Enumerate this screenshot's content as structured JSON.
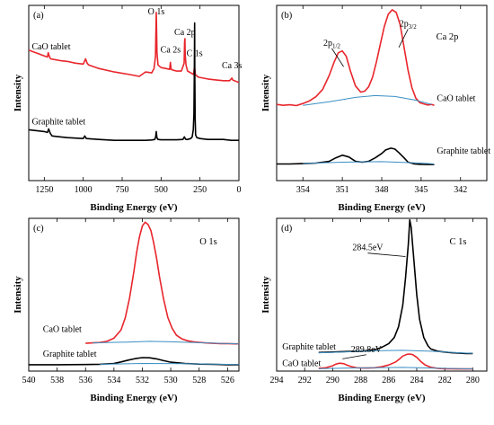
{
  "colors": {
    "cao": "#e8262c",
    "graphite": "#000000",
    "background": "#3a8fc4"
  },
  "chart_data": [
    {
      "type": "line",
      "label": "(a)",
      "xlabel": "Binding Energy (eV)",
      "ylabel": "Intensity",
      "xlim": [
        1350,
        0
      ],
      "ylim": [
        0,
        10
      ],
      "xticks": [
        1250,
        1000,
        750,
        500,
        250,
        0
      ],
      "peak_labels": [
        {
          "text": "O 1s",
          "x": 531,
          "y": 9.5
        },
        {
          "text": "Ca 2p",
          "x": 347,
          "y": 8.3
        },
        {
          "text": "Ca 2s",
          "x": 439,
          "y": 7.3
        },
        {
          "text": "C 1s",
          "x": 285,
          "y": 7.1
        },
        {
          "text": "Ca 3s",
          "x": 45,
          "y": 6.4
        }
      ],
      "series": [
        {
          "name": "CaO tablet",
          "color_key": "cao",
          "style": "curve",
          "label_at": [
            1330,
            7.5
          ],
          "x": [
            1350,
            1320,
            1290,
            1260,
            1230,
            1225,
            1218,
            1210,
            1180,
            1150,
            1100,
            1050,
            1000,
            985,
            975,
            965,
            900,
            800,
            700,
            640,
            600,
            560,
            545,
            536,
            531,
            526,
            520,
            500,
            470,
            445,
            440,
            435,
            420,
            400,
            370,
            352,
            349,
            347,
            345,
            340,
            330,
            300,
            292,
            285,
            280,
            260,
            200,
            150,
            100,
            80,
            60,
            50,
            45,
            40,
            30,
            0
          ],
          "y": [
            7.45,
            7.35,
            7.25,
            7.15,
            7.05,
            7.3,
            7.1,
            6.95,
            6.9,
            6.85,
            6.8,
            6.7,
            6.65,
            6.95,
            6.7,
            6.6,
            6.4,
            6.2,
            6.05,
            5.95,
            6.2,
            6.15,
            6.4,
            7.1,
            9.6,
            7.3,
            6.6,
            6.45,
            6.4,
            6.35,
            6.75,
            6.35,
            6.3,
            6.25,
            6.25,
            6.7,
            7.9,
            8.1,
            7.2,
            6.6,
            6.25,
            6.1,
            6.05,
            6.5,
            6.05,
            5.9,
            5.8,
            5.75,
            5.7,
            5.7,
            5.7,
            5.8,
            5.85,
            5.75,
            5.7,
            5.6
          ]
        },
        {
          "name": "Graphite tablet",
          "color_key": "graphite",
          "style": "curve",
          "label_at": [
            1330,
            3.2
          ],
          "x": [
            1350,
            1300,
            1250,
            1230,
            1222,
            1212,
            1200,
            1150,
            1100,
            1000,
            990,
            980,
            900,
            800,
            700,
            600,
            560,
            540,
            535,
            531,
            527,
            520,
            500,
            450,
            400,
            360,
            350,
            345,
            340,
            330,
            310,
            300,
            293,
            289,
            286,
            284.5,
            283,
            281,
            278,
            270,
            250,
            200,
            150,
            100,
            50,
            0
          ],
          "y": [
            2.9,
            2.85,
            2.8,
            2.75,
            2.95,
            2.7,
            2.55,
            2.5,
            2.45,
            2.4,
            2.55,
            2.4,
            2.35,
            2.3,
            2.3,
            2.3,
            2.32,
            2.35,
            2.5,
            2.8,
            2.45,
            2.35,
            2.33,
            2.33,
            2.33,
            2.35,
            2.5,
            2.4,
            2.35,
            2.35,
            2.4,
            2.5,
            2.9,
            3.8,
            6.5,
            9.0,
            6.0,
            3.5,
            2.6,
            2.45,
            2.4,
            2.35,
            2.35,
            2.35,
            2.3,
            2.3
          ]
        }
      ]
    },
    {
      "type": "line",
      "label": "(b)",
      "title": "Ca 2p",
      "xlabel": "Binding Energy (eV)",
      "ylabel": "Intensity",
      "xlim": [
        356,
        340
      ],
      "ylim": [
        0,
        10
      ],
      "xticks": [
        354,
        351,
        348,
        345,
        342
      ],
      "annotations": [
        {
          "main": "2p",
          "sub": "1/2",
          "x": 351.8,
          "y": 7.7,
          "arrow_to": [
            350.9,
            6.5
          ]
        },
        {
          "main": "2p",
          "sub": "3/2",
          "x": 346.0,
          "y": 8.8,
          "arrow_to": [
            346.7,
            7.6
          ]
        }
      ],
      "series": [
        {
          "name": "CaO tablet",
          "color_key": "cao",
          "style": "curve",
          "label_at": [
            343.8,
            4.55
          ],
          "x": [
            356,
            355.5,
            355,
            354.5,
            354,
            353.5,
            353,
            352.5,
            352,
            351.6,
            351.3,
            351,
            350.7,
            350.4,
            350,
            349.6,
            349.3,
            349,
            348.7,
            348.4,
            348.1,
            347.8,
            347.5,
            347.2,
            346.9,
            346.6,
            346.3,
            346,
            345.7,
            345.4,
            345.1,
            344.8,
            344.5,
            344.2,
            344
          ],
          "y": [
            4.35,
            4.3,
            4.33,
            4.28,
            4.4,
            4.55,
            4.8,
            5.2,
            6.0,
            6.8,
            7.3,
            7.4,
            7.1,
            6.3,
            5.4,
            5.05,
            5.1,
            5.35,
            5.9,
            6.8,
            7.8,
            8.8,
            9.5,
            9.75,
            9.6,
            8.9,
            7.6,
            6.3,
            5.3,
            4.7,
            4.45,
            4.38,
            4.32,
            4.35,
            4.3
          ]
        },
        {
          "name": "CaO background",
          "color_key": "background",
          "style": "baseline",
          "x": [
            354,
            352,
            350,
            348.5,
            347,
            345.5,
            344.2
          ],
          "y": [
            4.3,
            4.5,
            4.75,
            4.85,
            4.8,
            4.6,
            4.35
          ]
        },
        {
          "name": "Graphite tablet",
          "color_key": "graphite",
          "style": "curve",
          "label_at": [
            343.8,
            1.55
          ],
          "x": [
            356,
            355,
            354,
            353,
            352,
            351.5,
            351,
            350.5,
            350,
            349.5,
            349,
            348.5,
            348,
            347.7,
            347.3,
            347,
            346.7,
            346.3,
            346,
            345.5,
            345,
            344.5,
            344
          ],
          "y": [
            0.95,
            0.95,
            0.97,
            1.0,
            1.1,
            1.3,
            1.45,
            1.35,
            1.1,
            1.05,
            1.1,
            1.3,
            1.55,
            1.75,
            1.85,
            1.8,
            1.6,
            1.3,
            1.05,
            0.95,
            0.93,
            0.92,
            0.92
          ]
        },
        {
          "name": "Graphite background",
          "color_key": "background",
          "style": "baseline",
          "x": [
            354,
            351,
            348,
            345,
            344
          ],
          "y": [
            0.98,
            1.05,
            1.08,
            1.0,
            0.95
          ]
        }
      ]
    },
    {
      "type": "line",
      "label": "(c)",
      "title": "O 1s",
      "xlabel": "Binding Energy (eV)",
      "ylabel": "Intensity",
      "xlim": [
        540,
        525.2
      ],
      "ylim": [
        0,
        10
      ],
      "xticks": [
        540,
        538,
        536,
        534,
        532,
        530,
        528,
        526
      ],
      "series": [
        {
          "name": "CaO tablet",
          "color_key": "cao",
          "style": "curve",
          "label_at": [
            539,
            2.55
          ],
          "x": [
            536,
            535.5,
            535,
            534.5,
            534,
            533.5,
            533.2,
            532.9,
            532.6,
            532.4,
            532.2,
            532,
            531.8,
            531.6,
            531.4,
            531.2,
            531,
            530.8,
            530.5,
            530.2,
            529.9,
            529.6,
            529.2,
            528.8,
            528.4,
            528,
            527.6,
            527,
            526.5,
            526,
            525.5,
            525.2
          ],
          "y": [
            1.82,
            1.85,
            1.87,
            1.95,
            2.15,
            2.7,
            3.5,
            4.8,
            6.5,
            7.8,
            8.8,
            9.5,
            9.75,
            9.6,
            9.2,
            8.4,
            7.4,
            6.2,
            4.7,
            3.5,
            2.8,
            2.35,
            2.1,
            1.98,
            1.92,
            1.88,
            1.85,
            1.82,
            1.8,
            1.8,
            1.78,
            1.78
          ]
        },
        {
          "name": "CaO background",
          "color_key": "background",
          "style": "baseline",
          "x": [
            535.5,
            533,
            531.5,
            530,
            528,
            526,
            525.2
          ],
          "y": [
            1.85,
            1.9,
            1.95,
            1.92,
            1.86,
            1.8,
            1.78
          ]
        },
        {
          "name": "Graphite tablet",
          "color_key": "graphite",
          "style": "curve",
          "label_at": [
            539,
            0.95
          ],
          "x": [
            540,
            538,
            536,
            535,
            534,
            533.5,
            533,
            532.5,
            532,
            531.5,
            531,
            530.5,
            530,
            529,
            528,
            527,
            526,
            525.2
          ],
          "y": [
            0.42,
            0.42,
            0.43,
            0.45,
            0.5,
            0.6,
            0.72,
            0.82,
            0.88,
            0.87,
            0.8,
            0.68,
            0.58,
            0.5,
            0.46,
            0.44,
            0.42,
            0.42
          ]
        },
        {
          "name": "Graphite background",
          "color_key": "background",
          "style": "baseline",
          "x": [
            535,
            532,
            529,
            526,
            525.2
          ],
          "y": [
            0.45,
            0.5,
            0.48,
            0.44,
            0.43
          ]
        }
      ]
    },
    {
      "type": "line",
      "label": "(d)",
      "title": "C 1s",
      "xlabel": "Binding Energy (eV)",
      "ylabel": "Intensity",
      "xlim": [
        294,
        279
      ],
      "ylim": [
        0,
        10
      ],
      "xticks": [
        294,
        292,
        290,
        288,
        286,
        284,
        282,
        280
      ],
      "annotations": [
        {
          "text": "284.5eV",
          "x": 287.5,
          "y": 7.9,
          "arrow_to": [
            284.8,
            7.5
          ]
        },
        {
          "text": "289.8eV",
          "x": 287.6,
          "y": 1.25,
          "arrow_to": [
            289.3,
            0.8
          ]
        }
      ],
      "series": [
        {
          "name": "Graphite tablet",
          "color_key": "graphite",
          "style": "curve",
          "label_at": [
            293.6,
            1.4
          ],
          "x": [
            291,
            290,
            289,
            288,
            287,
            286.5,
            286,
            285.6,
            285.3,
            285,
            284.8,
            284.6,
            284.5,
            284.4,
            284.2,
            284,
            283.8,
            283.5,
            283.2,
            283,
            282.5,
            282,
            281.5,
            281,
            280.5,
            280
          ],
          "y": [
            1.22,
            1.25,
            1.28,
            1.3,
            1.4,
            1.55,
            1.8,
            2.2,
            2.9,
            4.3,
            6.1,
            8.3,
            9.9,
            9.4,
            7.2,
            5.0,
            3.4,
            2.2,
            1.65,
            1.45,
            1.3,
            1.25,
            1.2,
            1.18,
            1.15,
            1.15
          ]
        },
        {
          "name": "Graphite background",
          "color_key": "background",
          "style": "baseline",
          "x": [
            291,
            289,
            287,
            285,
            283,
            281,
            280
          ],
          "y": [
            1.2,
            1.26,
            1.33,
            1.36,
            1.3,
            1.2,
            1.16
          ]
        },
        {
          "name": "CaO tablet",
          "color_key": "cao",
          "style": "curve",
          "label_at": [
            293.6,
            0.33
          ],
          "x": [
            291,
            290.5,
            290,
            289.8,
            289.5,
            289.2,
            289,
            288.7,
            288.3,
            288,
            287.5,
            287,
            286.5,
            286,
            285.5,
            285.2,
            285,
            284.7,
            284.5,
            284.3,
            284,
            283.7,
            283.4,
            283,
            282.5,
            282,
            281.5,
            281,
            280.5,
            280
          ],
          "y": [
            0.18,
            0.22,
            0.35,
            0.45,
            0.52,
            0.48,
            0.4,
            0.3,
            0.22,
            0.2,
            0.2,
            0.22,
            0.28,
            0.4,
            0.6,
            0.82,
            0.98,
            1.1,
            1.12,
            1.08,
            0.9,
            0.62,
            0.4,
            0.25,
            0.18,
            0.15,
            0.15,
            0.14,
            0.14,
            0.14
          ]
        },
        {
          "name": "CaO background",
          "color_key": "background",
          "style": "baseline",
          "x": [
            291,
            289,
            287,
            285,
            283,
            281,
            280
          ],
          "y": [
            0.15,
            0.2,
            0.22,
            0.24,
            0.2,
            0.16,
            0.14
          ]
        }
      ]
    }
  ]
}
